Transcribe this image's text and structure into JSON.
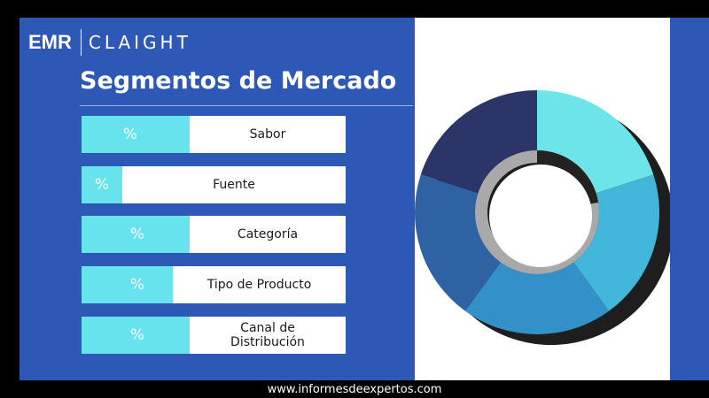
{
  "brand": {
    "emr": "EMR",
    "name": "CLAIGHT"
  },
  "title": "Segmentos de Mercado",
  "segments": [
    {
      "pct": "%",
      "label": "Sabor"
    },
    {
      "pct": "%",
      "label": "Fuente"
    },
    {
      "pct": "%",
      "label": "Categoría"
    },
    {
      "pct": "%",
      "label": "Tipo de Producto"
    },
    {
      "pct": "%",
      "label": "Canal de Distribución"
    }
  ],
  "donut": {
    "slices": [
      {
        "fraction": 0.2,
        "color": "#6de3ea"
      },
      {
        "fraction": 0.2,
        "color": "#42b7da"
      },
      {
        "fraction": 0.2,
        "color": "#3390c8"
      },
      {
        "fraction": 0.2,
        "color": "#2e62a2"
      },
      {
        "fraction": 0.2,
        "color": "#2c3568"
      }
    ]
  },
  "colors": {
    "panel_blue": "#2d58b6",
    "accent_cyan": "#66e3ec"
  },
  "footer": "www.informesdeexpertos.com"
}
